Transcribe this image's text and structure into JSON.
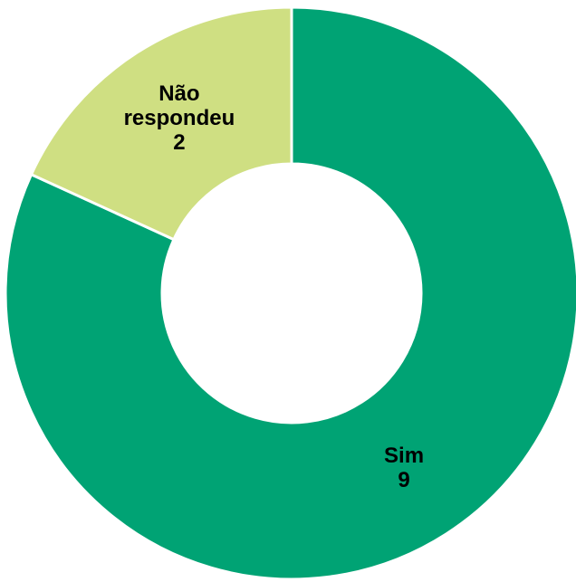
{
  "chart_data": {
    "type": "donut",
    "categories": [
      "Sim",
      "Não respondeu"
    ],
    "values": [
      9,
      2
    ],
    "colors": [
      "#00a374",
      "#cfdf82"
    ]
  }
}
